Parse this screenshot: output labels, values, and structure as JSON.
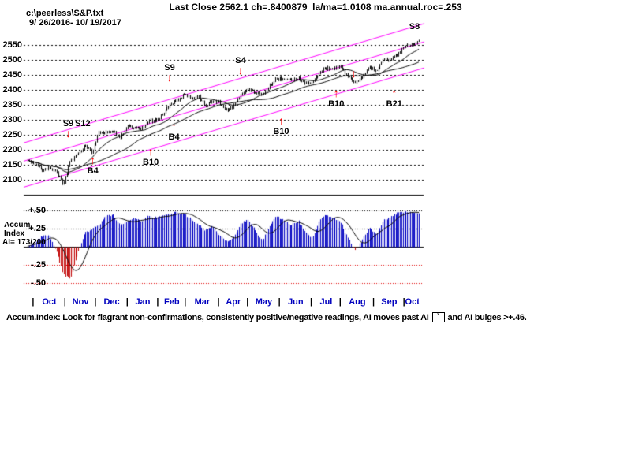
{
  "header": {
    "title": "Last Close 2562.1 ch=.8400879  la/ma=1.0108 ma.annual.roc=.253",
    "file_path": "c:\\peerless\\S&P.txt",
    "date_range": "9/ 26/2016- 10/ 19/2017"
  },
  "accum_panel": {
    "label_line1": "Accum",
    "label_line2": "Index",
    "label_line3": "AI= 173/200"
  },
  "footer": {
    "text_before": "Accum.Index: Look for flagrant non-confirmations, consistently positive/negative readings, AI moves past AI",
    "box_char": "`",
    "text_after": "and AI bulges >+.46."
  },
  "colors": {
    "grid": "#000000",
    "price_bar": "#000000",
    "trend_line": "#FF00FF",
    "signal_arrow": "#FF0000",
    "month_label": "#0000BF",
    "ai_bar_positive": "#0000C0",
    "ai_bar_negative": "#C00000",
    "negative_grid": "#E00000"
  },
  "chart_data": [
    {
      "type": "line",
      "name": "price-panel",
      "ylim": [
        2050,
        2615
      ],
      "y_ticks": [
        2550,
        2500,
        2450,
        2400,
        2350,
        2300,
        2250,
        2200,
        2150,
        2100
      ],
      "days": 271,
      "x_months": [
        "Oct",
        "Nov",
        "Dec",
        "Jan",
        "Feb",
        "Mar",
        "Apr",
        "May",
        "Jun",
        "Jul",
        "Aug",
        "Sep",
        "Oct"
      ],
      "month_start_days": [
        4,
        26,
        47,
        69,
        90,
        109,
        132,
        152,
        174,
        196,
        216,
        239,
        260
      ],
      "weekly_closes": [
        2168,
        2154,
        2133,
        2141,
        2126,
        2085,
        2164,
        2182,
        2213,
        2192,
        2260,
        2258,
        2264,
        2239,
        2277,
        2275,
        2271,
        2295,
        2297,
        2316,
        2351,
        2367,
        2383,
        2373,
        2378,
        2344,
        2363,
        2356,
        2329,
        2349,
        2384,
        2399,
        2391,
        2382,
        2416,
        2439,
        2432,
        2433,
        2438,
        2423,
        2425,
        2459,
        2473,
        2472,
        2477,
        2441,
        2426,
        2443,
        2477,
        2461,
        2500,
        2502,
        2519,
        2549,
        2553,
        2562
      ],
      "trend_channel": [
        [
          2227,
          2616
        ],
        [
          2166,
          2555
        ],
        [
          2079,
          2468
        ]
      ],
      "signals": [
        {
          "label": "S9",
          "day": 28,
          "price": 2287,
          "arrow": "down"
        },
        {
          "label": "S12",
          "day": 38,
          "price": 2287,
          "arrow": "none"
        },
        {
          "label": "B4",
          "day": 45,
          "price": 2130,
          "arrow": "up"
        },
        {
          "label": "B10",
          "day": 85,
          "price": 2158,
          "arrow": "up"
        },
        {
          "label": "S9",
          "day": 98,
          "price": 2473,
          "arrow": "down"
        },
        {
          "label": "B4",
          "day": 101,
          "price": 2243,
          "arrow": "up"
        },
        {
          "label": "S4",
          "day": 147,
          "price": 2498,
          "arrow": "down"
        },
        {
          "label": "B10",
          "day": 175,
          "price": 2260,
          "arrow": "up"
        },
        {
          "label": "B10",
          "day": 213,
          "price": 2352,
          "arrow": "up"
        },
        {
          "label": "",
          "day": 225,
          "price": 2487,
          "arrow": "down"
        },
        {
          "label": "B21",
          "day": 253,
          "price": 2352,
          "arrow": "up"
        },
        {
          "label": "S8",
          "day": 267,
          "price": 2610,
          "arrow": "none"
        }
      ]
    },
    {
      "type": "bar",
      "name": "accum-index-panel",
      "ylim": [
        -0.55,
        0.6
      ],
      "ticks": [
        0.5,
        0.25,
        -0.25,
        -0.5
      ],
      "tick_labels": [
        "+.50",
        "+.25",
        "-.25",
        "-.50"
      ],
      "weekly_values": [
        0.02,
        0.06,
        0.15,
        0.15,
        -0.05,
        -0.38,
        -0.45,
        -0.1,
        0.18,
        0.25,
        0.3,
        0.42,
        0.44,
        0.3,
        0.35,
        0.4,
        0.36,
        0.42,
        0.4,
        0.44,
        0.46,
        0.47,
        0.45,
        0.38,
        0.3,
        0.22,
        0.28,
        0.16,
        0.06,
        0.14,
        0.32,
        0.38,
        0.22,
        0.08,
        0.28,
        0.42,
        0.36,
        0.3,
        0.36,
        0.22,
        0.12,
        0.36,
        0.44,
        0.4,
        0.34,
        0.12,
        -0.05,
        0.08,
        0.26,
        0.18,
        0.36,
        0.42,
        0.46,
        0.48,
        0.47,
        0.45
      ]
    }
  ]
}
